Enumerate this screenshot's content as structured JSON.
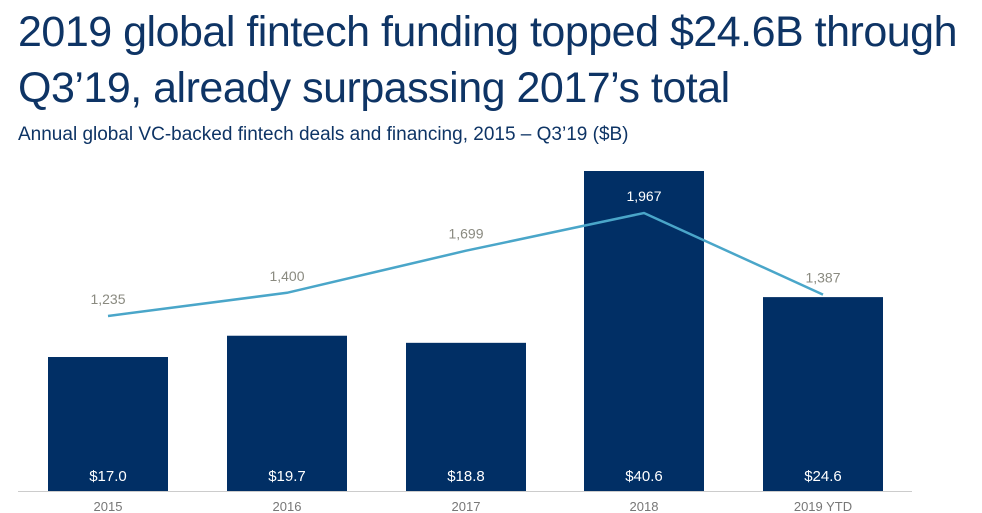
{
  "title_line1": "2019 global fintech funding topped $24.6B through",
  "title_line2": "Q3’19, already surpassing 2017’s total",
  "subtitle": "Annual global VC-backed fintech deals and financing, 2015 – Q3’19 ($B)",
  "colors": {
    "bar": "#012f65",
    "line": "#4aa6c9",
    "title": "#0e3465",
    "deal_label": "#8a8a80",
    "axis": "#cccccc",
    "bar_label": "#ffffff",
    "tick_label": "#777777"
  },
  "chart_data": {
    "type": "bar",
    "categories": [
      "2015",
      "2016",
      "2017",
      "2018",
      "2019 YTD"
    ],
    "series": [
      {
        "values": [
          17.0,
          19.7,
          18.8,
          40.6,
          24.6
        ],
        "labels": [
          "$17.0",
          "$19.7",
          "$18.8",
          "$40.6",
          "$24.6"
        ],
        "type": "bar"
      },
      {
        "values": [
          1235,
          1400,
          1699,
          1967,
          1387
        ],
        "labels": [
          "1,235",
          "1,400",
          "1,699",
          "1,967",
          "1,387"
        ],
        "type": "line"
      }
    ],
    "title": "2019 global fintech funding topped $24.6B through Q3’19, already surpassing 2017’s total",
    "subtitle": "Annual global VC-backed fintech deals and financing, 2015 – Q3’19 ($B)",
    "grid": false,
    "legend": "none"
  }
}
